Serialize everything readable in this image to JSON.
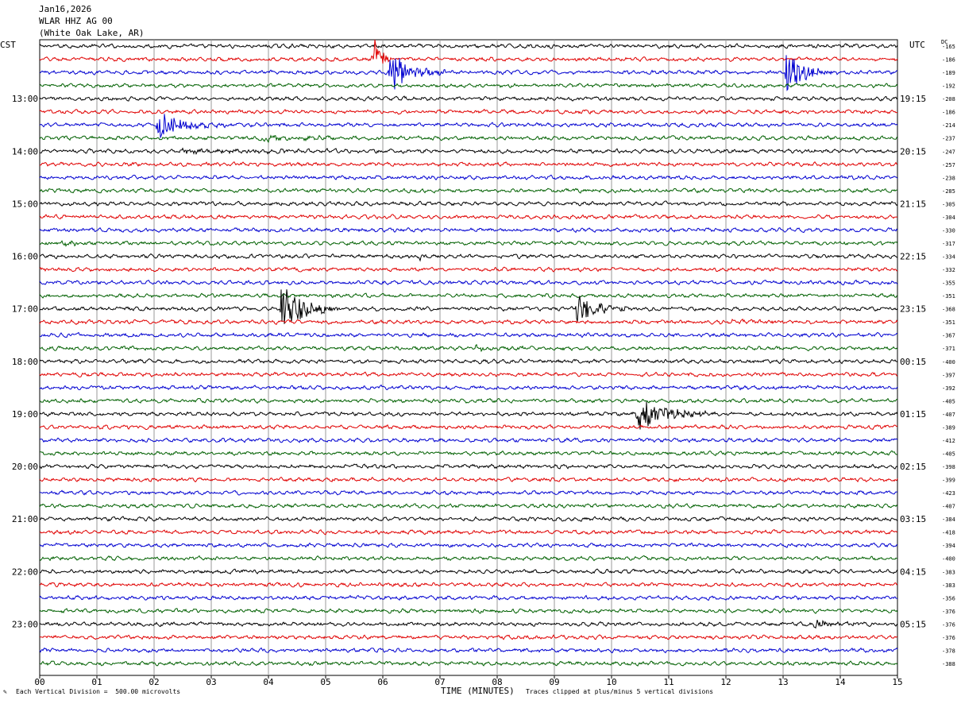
{
  "header": {
    "date": "Jan16,2026",
    "station": "WLAR HHZ AG 00",
    "location": "(White Oak Lake, AR)"
  },
  "chart_data": {
    "type": "line",
    "left_timezone": "CST",
    "right_timezone": "UTC",
    "dc_label": "DC",
    "xlabel": "TIME (MINUTES)",
    "x_ticks": [
      "00",
      "01",
      "02",
      "03",
      "04",
      "05",
      "06",
      "07",
      "08",
      "09",
      "10",
      "11",
      "12",
      "13",
      "14",
      "15"
    ],
    "xlim": [
      0,
      15
    ],
    "trace_minutes": 15,
    "trace_colors": [
      "#000000",
      "#e00000",
      "#0000d0",
      "#006000"
    ],
    "left_hour_labels": [
      "13:00",
      "14:00",
      "15:00",
      "16:00",
      "17:00",
      "18:00",
      "19:00",
      "20:00",
      "21:00",
      "22:00",
      "23:00"
    ],
    "right_hour_labels": [
      "19:15",
      "20:15",
      "21:15",
      "22:15",
      "23:15",
      "00:15",
      "01:15",
      "02:15",
      "03:15",
      "04:15",
      "05:15"
    ],
    "first_labeled_trace": 4,
    "dc_offsets": [
      "-165",
      "-186",
      "-189",
      "-192",
      "-208",
      "-186",
      "-214",
      "-237",
      "-247",
      "-257",
      "-238",
      "-285",
      "-305",
      "-304",
      "-330",
      "-317",
      "-334",
      "-332",
      "-355",
      "-351",
      "-368",
      "-351",
      "-367",
      "-371",
      "-400",
      "-397",
      "-392",
      "-405",
      "-407",
      "-389",
      "-412",
      "-405",
      "-398",
      "-399",
      "-423",
      "-407",
      "-384",
      "-418",
      "-394",
      "-400",
      "-383",
      "-383",
      "-356",
      "-376",
      "-376",
      "-376",
      "-378",
      "-388"
    ],
    "events": [
      {
        "trace": 1,
        "minute": 5.82,
        "amplitude": 14,
        "duration": 0.12
      },
      {
        "trace": 2,
        "minute": 6.12,
        "amplitude": 10,
        "duration": 0.35
      },
      {
        "trace": 2,
        "minute": 13.05,
        "amplitude": 10,
        "duration": 0.35
      },
      {
        "trace": 6,
        "minute": 2.05,
        "amplitude": 7,
        "duration": 0.4
      },
      {
        "trace": 7,
        "minute": 3.9,
        "amplitude": 1.3,
        "duration": 0.8
      },
      {
        "trace": 8,
        "minute": 2.5,
        "amplitude": 1.0,
        "duration": 1.2
      },
      {
        "trace": 15,
        "minute": 0.4,
        "amplitude": 1.6,
        "duration": 0.2
      },
      {
        "trace": 16,
        "minute": 6.65,
        "amplitude": 1.6,
        "duration": 0.1
      },
      {
        "trace": 20,
        "minute": 4.22,
        "amplitude": 14,
        "duration": 0.35
      },
      {
        "trace": 20,
        "minute": 9.38,
        "amplitude": 7,
        "duration": 0.35
      },
      {
        "trace": 21,
        "minute": 12.1,
        "amplitude": 0.9,
        "duration": 0.5
      },
      {
        "trace": 23,
        "minute": 7.6,
        "amplitude": 0.9,
        "duration": 0.6
      },
      {
        "trace": 28,
        "minute": 10.45,
        "amplitude": 9,
        "duration": 0.45
      },
      {
        "trace": 44,
        "minute": 13.55,
        "amplitude": 2.5,
        "duration": 0.25
      }
    ],
    "vertical_division": "500.00 microvolts",
    "clip_divisions": 5
  },
  "footer": {
    "scale_note": "Each Vertical Division =  500.00 microvolts",
    "clip_note": "Traces clipped at plus/minus 5 vertical divisions"
  }
}
